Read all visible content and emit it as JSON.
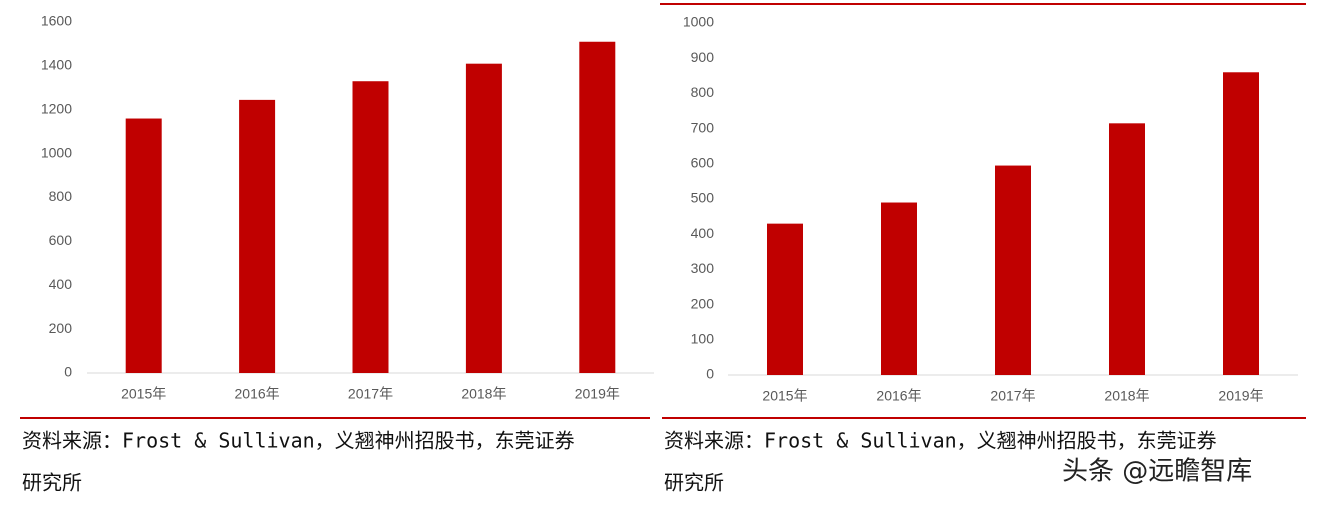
{
  "chart_data": [
    {
      "type": "bar",
      "categories": [
        "2015年",
        "2016年",
        "2017年",
        "2018年",
        "2019年"
      ],
      "values": [
        1160,
        1245,
        1330,
        1410,
        1510
      ],
      "color": "#c00000",
      "ylim": [
        0,
        1600
      ],
      "yticks": [
        0,
        200,
        400,
        600,
        800,
        1000,
        1200,
        1400,
        1600
      ],
      "grid": false,
      "source": [
        "资料来源：Frost & Sullivan，义翘神州招股书，东莞证券",
        "研究所"
      ]
    },
    {
      "type": "bar",
      "categories": [
        "2015年",
        "2016年",
        "2017年",
        "2018年",
        "2019年"
      ],
      "values": [
        430,
        490,
        595,
        715,
        860
      ],
      "color": "#c00000",
      "ylim": [
        0,
        1000
      ],
      "yticks": [
        0,
        100,
        200,
        300,
        400,
        500,
        600,
        700,
        800,
        900,
        1000
      ],
      "grid": false,
      "source": [
        "资料来源：Frost & Sullivan，义翘神州招股书，东莞证券",
        "研究所"
      ]
    }
  ],
  "watermark": "头条 @远瞻智库"
}
